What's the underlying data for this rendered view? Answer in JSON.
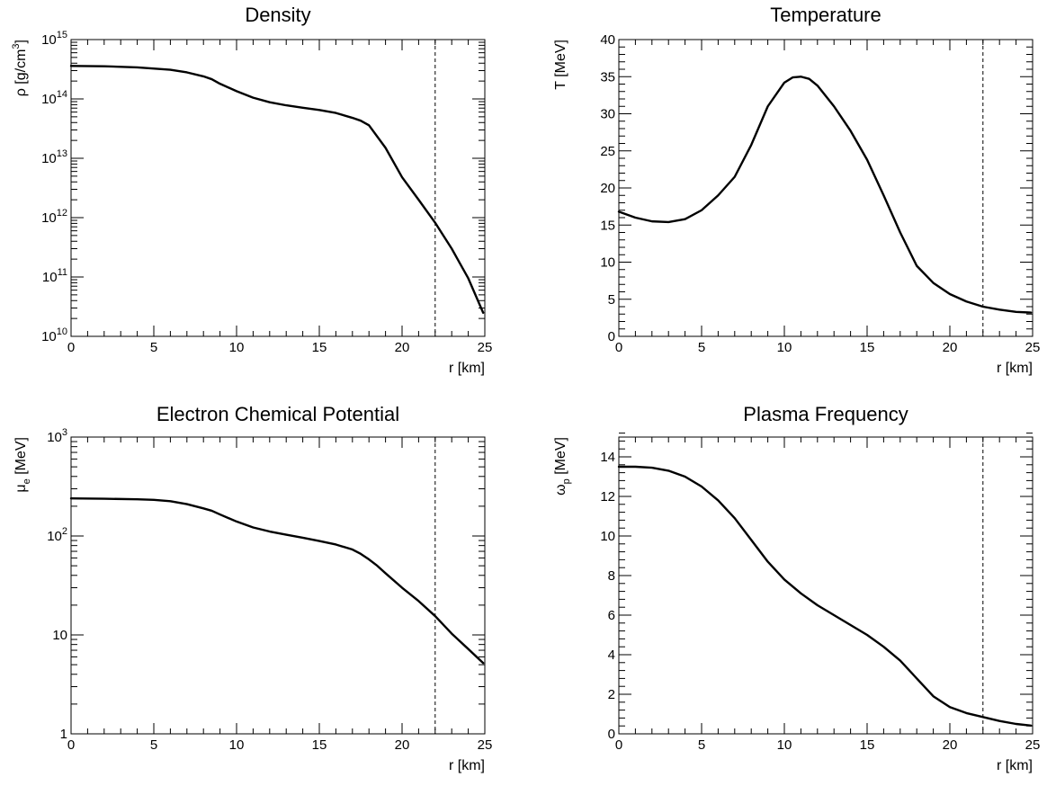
{
  "chart_data": [
    {
      "type": "line",
      "title": "Density",
      "xlabel": "r [km]",
      "ylabel": "ρ [g/cm³]",
      "ylabel_main": "ρ [g/cm",
      "ylabel_sup": "3",
      "ylabel_tail": "]",
      "xlim": [
        0,
        25
      ],
      "ylim": [
        10000000000.0,
        1000000000000000.0
      ],
      "yscale": "log",
      "xticks": [
        0,
        5,
        10,
        15,
        20,
        25
      ],
      "yticks": [
        10000000000.0,
        100000000000.0,
        1000000000000.0,
        10000000000000.0,
        100000000000000.0,
        1000000000000000.0
      ],
      "ytick_labels": [
        {
          "base": "10",
          "exp": "10"
        },
        {
          "base": "10",
          "exp": "11"
        },
        {
          "base": "10",
          "exp": "12"
        },
        {
          "base": "10",
          "exp": "13"
        },
        {
          "base": "10",
          "exp": "14"
        },
        {
          "base": "10",
          "exp": "15"
        }
      ],
      "vline": 22,
      "series": [
        {
          "x": [
            0,
            2,
            4,
            6,
            7,
            8,
            8.5,
            9,
            10,
            11,
            12,
            13,
            14,
            15,
            16,
            17,
            17.5,
            18,
            19,
            20,
            21,
            22,
            23,
            24,
            24.9
          ],
          "y": [
            360000000000000.0,
            355000000000000.0,
            340000000000000.0,
            310000000000000.0,
            280000000000000.0,
            240000000000000.0,
            215000000000000.0,
            180000000000000.0,
            135000000000000.0,
            105000000000000.0,
            88000000000000.0,
            78000000000000.0,
            71000000000000.0,
            65000000000000.0,
            58000000000000.0,
            48000000000000.0,
            43000000000000.0,
            36000000000000.0,
            15000000000000.0,
            4800000000000.0,
            2000000000000.0,
            820000000000.0,
            300000000000.0,
            95000000000.0,
            25000000000.0
          ]
        }
      ]
    },
    {
      "type": "line",
      "title": "Temperature",
      "xlabel": "r [km]",
      "ylabel": "T [MeV]",
      "xlim": [
        0,
        25
      ],
      "ylim": [
        0,
        40
      ],
      "yscale": "linear",
      "xticks": [
        0,
        5,
        10,
        15,
        20,
        25
      ],
      "yticks": [
        0,
        5,
        10,
        15,
        20,
        25,
        30,
        35,
        40
      ],
      "vline": 22,
      "series": [
        {
          "x": [
            0,
            1,
            2,
            3,
            4,
            5,
            6,
            7,
            8,
            9,
            10,
            10.5,
            11,
            11.5,
            12,
            13,
            14,
            15,
            16,
            17,
            18,
            19,
            20,
            21,
            22,
            23,
            24,
            24.9
          ],
          "y": [
            16.8,
            16.0,
            15.5,
            15.4,
            15.8,
            17.0,
            19.0,
            21.5,
            25.8,
            31.0,
            34.2,
            34.9,
            35.0,
            34.7,
            33.8,
            31.0,
            27.7,
            23.8,
            19.0,
            14.0,
            9.5,
            7.2,
            5.7,
            4.7,
            4.0,
            3.6,
            3.3,
            3.2
          ]
        }
      ]
    },
    {
      "type": "line",
      "title": "Electron Chemical Potential",
      "xlabel": "r [km]",
      "ylabel": "μe [MeV]",
      "ylabel_main": "μ",
      "ylabel_sub": "e",
      "ylabel_tail": " [MeV]",
      "xlim": [
        0,
        25
      ],
      "ylim": [
        1,
        1000
      ],
      "yscale": "log",
      "xticks": [
        0,
        5,
        10,
        15,
        20,
        25
      ],
      "yticks": [
        1,
        10,
        100,
        1000
      ],
      "ytick_labels": [
        {
          "base": "1",
          "exp": ""
        },
        {
          "base": "10",
          "exp": ""
        },
        {
          "base": "10",
          "exp": "2"
        },
        {
          "base": "10",
          "exp": "3"
        }
      ],
      "vline": 22,
      "series": [
        {
          "x": [
            0,
            2,
            4,
            5,
            6,
            7,
            8,
            8.5,
            9,
            10,
            11,
            12,
            13,
            14,
            15,
            16,
            17,
            17.5,
            18,
            18.5,
            19,
            20,
            21,
            22,
            23,
            24,
            24.9
          ],
          "y": [
            240,
            238,
            235,
            232,
            225,
            210,
            190,
            180,
            165,
            140,
            122,
            111,
            103,
            96,
            89,
            82,
            73,
            66,
            58,
            50,
            42,
            30,
            22,
            15.5,
            10.3,
            7.2,
            5.2
          ]
        }
      ]
    },
    {
      "type": "line",
      "title": "Plasma Frequency",
      "xlabel": "r [km]",
      "ylabel": "ωp [MeV]",
      "ylabel_main": "ω",
      "ylabel_sub": "p",
      "ylabel_tail": " [MeV]",
      "xlim": [
        0,
        25
      ],
      "ylim": [
        0,
        15
      ],
      "yscale": "linear",
      "xticks": [
        0,
        5,
        10,
        15,
        20,
        25
      ],
      "yticks": [
        0,
        2,
        4,
        6,
        8,
        10,
        12,
        14
      ],
      "vline": 22,
      "series": [
        {
          "x": [
            0,
            1,
            2,
            3,
            4,
            5,
            6,
            7,
            8,
            9,
            10,
            11,
            12,
            13,
            14,
            15,
            16,
            17,
            18,
            19,
            20,
            21,
            22,
            23,
            24,
            24.9
          ],
          "y": [
            13.5,
            13.5,
            13.45,
            13.3,
            13.0,
            12.5,
            11.8,
            10.9,
            9.8,
            8.7,
            7.8,
            7.1,
            6.5,
            6.0,
            5.5,
            5.0,
            4.4,
            3.7,
            2.8,
            1.9,
            1.35,
            1.05,
            0.85,
            0.65,
            0.5,
            0.42
          ]
        }
      ]
    }
  ]
}
